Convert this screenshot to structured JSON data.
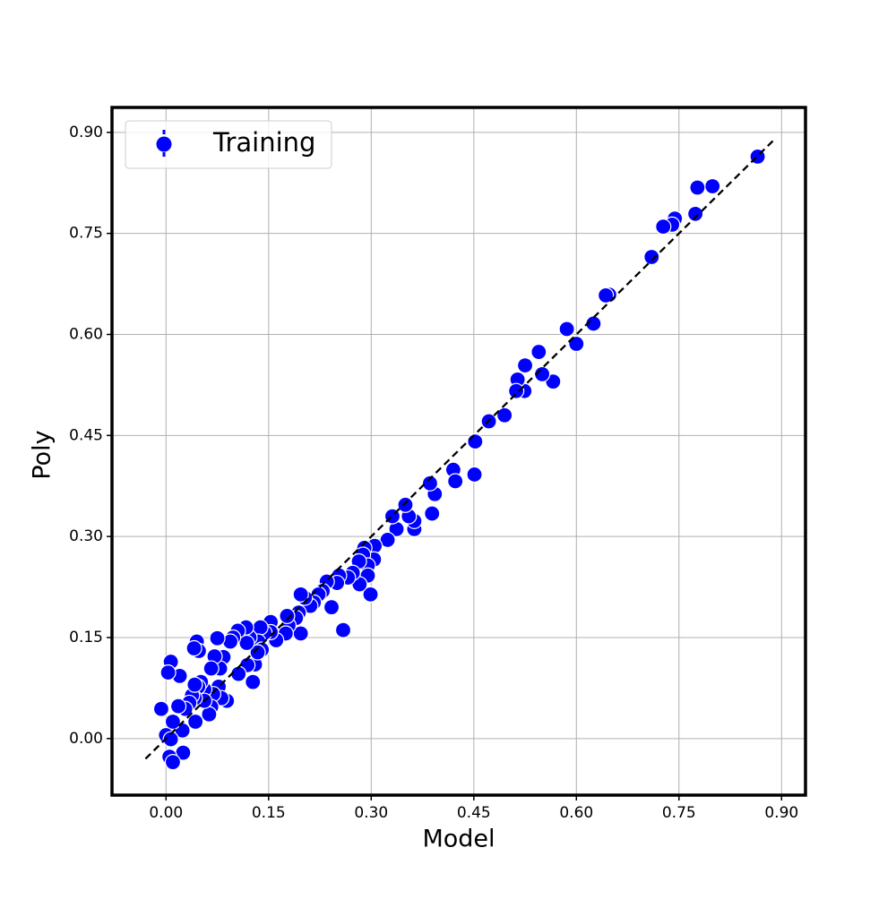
{
  "chart_data": {
    "type": "scatter",
    "xlabel": "Model",
    "ylabel": "Poly",
    "xlim": [
      -0.079,
      0.935
    ],
    "ylim": [
      -0.084,
      0.937
    ],
    "xticks": [
      {
        "value": 0,
        "label": "0.00"
      },
      {
        "value": 0.15,
        "label": "0.15"
      },
      {
        "value": 0.3,
        "label": "0.30"
      },
      {
        "value": 0.45,
        "label": "0.45"
      },
      {
        "value": 0.6,
        "label": "0.60"
      },
      {
        "value": 0.75,
        "label": "0.75"
      },
      {
        "value": 0.9,
        "label": "0.90"
      }
    ],
    "yticks": [
      {
        "value": 0,
        "label": "0.00"
      },
      {
        "value": 0.15,
        "label": "0.15"
      },
      {
        "value": 0.3,
        "label": "0.30"
      },
      {
        "value": 0.45,
        "label": "0.45"
      },
      {
        "value": 0.6,
        "label": "0.60"
      },
      {
        "value": 0.75,
        "label": "0.75"
      },
      {
        "value": 0.9,
        "label": "0.90"
      }
    ],
    "grid": true,
    "legend": "upper left",
    "reference_line": {
      "color": "#000000",
      "x": [
        -0.03,
        0.89
      ],
      "y": [
        -0.03,
        0.89
      ]
    },
    "series": [
      {
        "name": "Training",
        "color": "#0000ff",
        "x": [
          0.865,
          0.799,
          0.777,
          0.774,
          0.744,
          0.74,
          0.727,
          0.71,
          0.648,
          0.643,
          0.625,
          0.6,
          0.586,
          0.566,
          0.55,
          0.545,
          0.525,
          0.524,
          0.514,
          0.512,
          0.495,
          0.472,
          0.452,
          0.451,
          0.42,
          0.423,
          0.393,
          0.386,
          0.389,
          0.363,
          0.363,
          0.355,
          0.35,
          0.337,
          0.331,
          0.324,
          0.305,
          0.304,
          0.29,
          0.288,
          0.295,
          0.295,
          0.299,
          0.282,
          0.283,
          0.273,
          0.266,
          0.253,
          0.25,
          0.259,
          0.235,
          0.229,
          0.223,
          0.216,
          0.242,
          0.211,
          0.203,
          0.194,
          0.197,
          0.197,
          0.19,
          0.179,
          0.175,
          0.177,
          0.153,
          0.161,
          0.153,
          0.144,
          0.138,
          0.135,
          0.14,
          0.13,
          0.127,
          0.134,
          0.122,
          0.118,
          0.117,
          0.105,
          0.098,
          0.094,
          0.119,
          0.106,
          0.089,
          0.084,
          0.079,
          0.075,
          0.071,
          0.066,
          0.077,
          0.081,
          0.069,
          0.066,
          0.063,
          0.056,
          0.056,
          0.051,
          0.047,
          0.045,
          0.048,
          0.041,
          0.042,
          0.038,
          0.043,
          0.034,
          0.02,
          0.028,
          0.018,
          0.024,
          0.025,
          0.01,
          0.007,
          0.003,
          -0.007,
          0.0,
          0.007,
          0.005,
          0.01,
          0.042
        ],
        "values": [
          0.864,
          0.82,
          0.818,
          0.779,
          0.772,
          0.763,
          0.76,
          0.715,
          0.659,
          0.658,
          0.616,
          0.586,
          0.608,
          0.53,
          0.541,
          0.574,
          0.554,
          0.516,
          0.533,
          0.516,
          0.48,
          0.471,
          0.441,
          0.392,
          0.399,
          0.382,
          0.363,
          0.379,
          0.334,
          0.311,
          0.323,
          0.33,
          0.347,
          0.311,
          0.33,
          0.295,
          0.286,
          0.266,
          0.283,
          0.273,
          0.257,
          0.242,
          0.214,
          0.263,
          0.229,
          0.246,
          0.239,
          0.242,
          0.231,
          0.161,
          0.233,
          0.219,
          0.214,
          0.202,
          0.195,
          0.197,
          0.209,
          0.187,
          0.214,
          0.156,
          0.179,
          0.168,
          0.156,
          0.182,
          0.173,
          0.146,
          0.158,
          0.157,
          0.165,
          0.144,
          0.132,
          0.11,
          0.084,
          0.128,
          0.15,
          0.142,
          0.165,
          0.16,
          0.15,
          0.144,
          0.109,
          0.096,
          0.056,
          0.121,
          0.104,
          0.149,
          0.122,
          0.104,
          0.077,
          0.06,
          0.066,
          0.047,
          0.036,
          0.073,
          0.056,
          0.084,
          0.077,
          0.144,
          0.13,
          0.134,
          0.06,
          0.064,
          0.025,
          0.053,
          0.093,
          0.044,
          0.048,
          0.012,
          -0.021,
          0.025,
          0.114,
          0.098,
          0.044,
          0.005,
          -0.001,
          -0.027,
          -0.035,
          0.08
        ]
      }
    ]
  }
}
